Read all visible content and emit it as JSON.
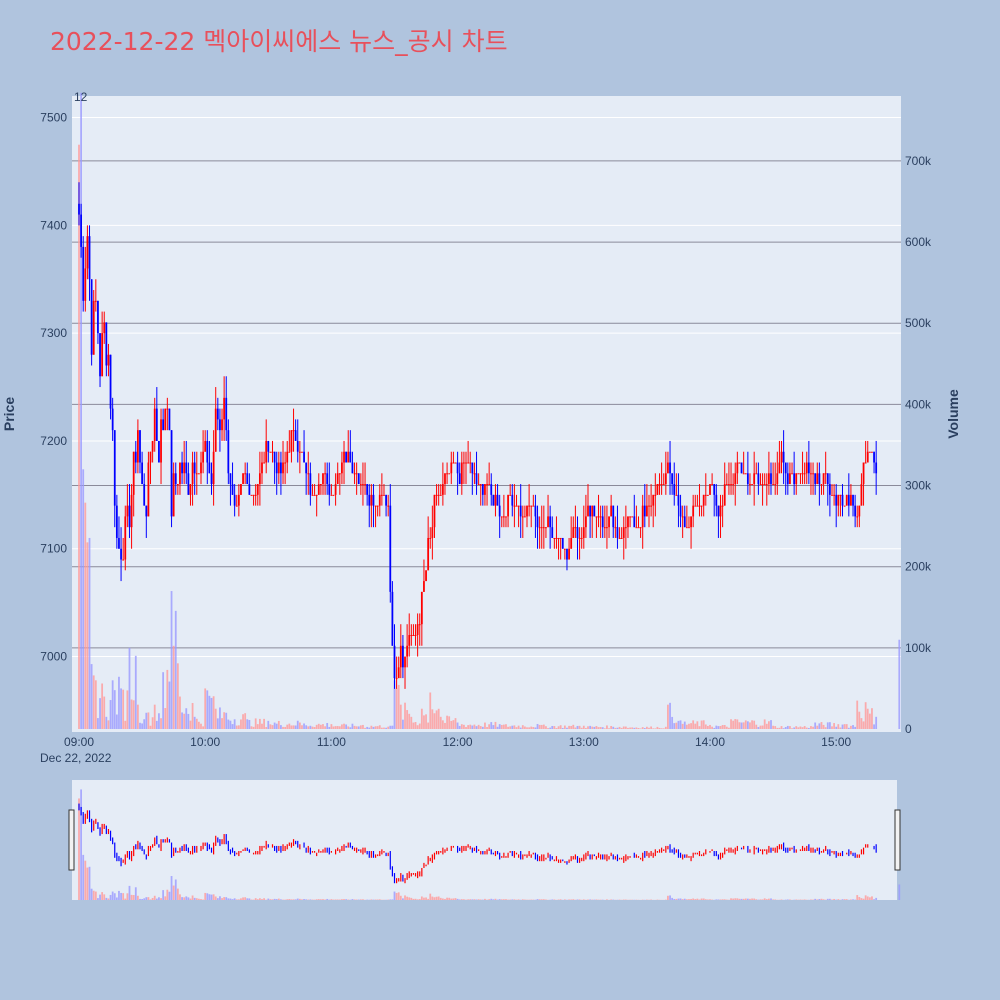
{
  "title": "2022-12-22 멕아이씨에스 뉴스_공시 차트",
  "colors": {
    "background": "#b0c4de",
    "plot_bg": "#e5ecf6",
    "title": "#e8505b",
    "up": "#ff0000",
    "down": "#0000ff",
    "up_volume": "#ff9a9a",
    "down_volume": "#9a9aff",
    "text": "#2a3f5f"
  },
  "chart_data": {
    "type": "candlestick",
    "title": "2022-12-22 멕아이씨에스 뉴스_공시 차트",
    "ylabel": "Price",
    "y2label": "Volume",
    "date_label": "Dec 22, 2022",
    "annotation": "12",
    "price_ylim": [
      6930,
      7520
    ],
    "volume_ylim": [
      0,
      780000
    ],
    "x_range": [
      "09:00",
      "15:30"
    ],
    "price_ticks": [
      7000,
      7100,
      7200,
      7300,
      7400,
      7500
    ],
    "price_tick_labels": [
      "7000",
      "7100",
      "7200",
      "7300",
      "7400",
      "7500"
    ],
    "volume_ticks": [
      0,
      100000,
      200000,
      300000,
      400000,
      500000,
      600000,
      700000
    ],
    "volume_tick_labels": [
      "0",
      "100k",
      "200k",
      "300k",
      "400k",
      "500k",
      "600k",
      "700k"
    ],
    "time_ticks": [
      "09:00",
      "10:00",
      "11:00",
      "12:00",
      "13:00",
      "14:00",
      "15:00"
    ],
    "price_path": [
      [
        "09:00",
        7410
      ],
      [
        "09:02",
        7350
      ],
      [
        "09:04",
        7390
      ],
      [
        "09:06",
        7300
      ],
      [
        "09:08",
        7330
      ],
      [
        "09:10",
        7270
      ],
      [
        "09:12",
        7300
      ],
      [
        "09:14",
        7280
      ],
      [
        "09:16",
        7200
      ],
      [
        "09:18",
        7110
      ],
      [
        "09:20",
        7100
      ],
      [
        "09:22",
        7110
      ],
      [
        "09:24",
        7140
      ],
      [
        "09:26",
        7170
      ],
      [
        "09:28",
        7210
      ],
      [
        "09:30",
        7150
      ],
      [
        "09:32",
        7140
      ],
      [
        "09:34",
        7190
      ],
      [
        "09:36",
        7230
      ],
      [
        "09:38",
        7190
      ],
      [
        "09:40",
        7220
      ],
      [
        "09:42",
        7250
      ],
      [
        "09:44",
        7140
      ],
      [
        "09:46",
        7160
      ],
      [
        "09:48",
        7180
      ],
      [
        "09:50",
        7170
      ],
      [
        "09:52",
        7160
      ],
      [
        "09:55",
        7190
      ],
      [
        "09:58",
        7170
      ],
      [
        "10:00",
        7190
      ],
      [
        "10:03",
        7160
      ],
      [
        "10:05",
        7230
      ],
      [
        "10:07",
        7210
      ],
      [
        "10:09",
        7240
      ],
      [
        "10:11",
        7170
      ],
      [
        "10:13",
        7150
      ],
      [
        "10:15",
        7130
      ],
      [
        "10:18",
        7170
      ],
      [
        "10:21",
        7160
      ],
      [
        "10:24",
        7150
      ],
      [
        "10:27",
        7180
      ],
      [
        "10:30",
        7200
      ],
      [
        "10:33",
        7180
      ],
      [
        "10:36",
        7170
      ],
      [
        "10:39",
        7190
      ],
      [
        "10:42",
        7210
      ],
      [
        "10:45",
        7190
      ],
      [
        "10:48",
        7170
      ],
      [
        "10:51",
        7150
      ],
      [
        "10:55",
        7170
      ],
      [
        "11:00",
        7150
      ],
      [
        "11:03",
        7170
      ],
      [
        "11:06",
        7190
      ],
      [
        "11:09",
        7180
      ],
      [
        "11:12",
        7170
      ],
      [
        "11:15",
        7160
      ],
      [
        "11:18",
        7150
      ],
      [
        "11:21",
        7140
      ],
      [
        "11:24",
        7150
      ],
      [
        "11:27",
        7140
      ],
      [
        "11:29",
        7000
      ],
      [
        "11:31",
        6990
      ],
      [
        "11:33",
        7010
      ],
      [
        "11:35",
        7000
      ],
      [
        "11:37",
        7020
      ],
      [
        "11:39",
        7010
      ],
      [
        "11:41",
        7030
      ],
      [
        "11:43",
        7050
      ],
      [
        "11:45",
        7080
      ],
      [
        "11:47",
        7110
      ],
      [
        "11:49",
        7140
      ],
      [
        "11:51",
        7150
      ],
      [
        "11:53",
        7160
      ],
      [
        "11:55",
        7170
      ],
      [
        "11:58",
        7180
      ],
      [
        "12:01",
        7170
      ],
      [
        "12:04",
        7180
      ],
      [
        "12:07",
        7170
      ],
      [
        "12:10",
        7160
      ],
      [
        "12:13",
        7160
      ],
      [
        "12:16",
        7150
      ],
      [
        "12:19",
        7140
      ],
      [
        "12:22",
        7130
      ],
      [
        "12:25",
        7150
      ],
      [
        "12:28",
        7140
      ],
      [
        "12:31",
        7130
      ],
      [
        "12:34",
        7140
      ],
      [
        "12:37",
        7130
      ],
      [
        "12:40",
        7120
      ],
      [
        "12:43",
        7130
      ],
      [
        "12:46",
        7110
      ],
      [
        "12:49",
        7120
      ],
      [
        "12:52",
        7090
      ],
      [
        "12:55",
        7120
      ],
      [
        "12:58",
        7110
      ],
      [
        "13:01",
        7130
      ],
      [
        "13:04",
        7140
      ],
      [
        "13:07",
        7130
      ],
      [
        "13:10",
        7120
      ],
      [
        "13:13",
        7130
      ],
      [
        "13:16",
        7110
      ],
      [
        "13:19",
        7120
      ],
      [
        "13:22",
        7130
      ],
      [
        "13:25",
        7120
      ],
      [
        "13:28",
        7130
      ],
      [
        "13:31",
        7140
      ],
      [
        "13:34",
        7150
      ],
      [
        "13:37",
        7160
      ],
      [
        "13:40",
        7180
      ],
      [
        "13:43",
        7150
      ],
      [
        "13:46",
        7130
      ],
      [
        "13:49",
        7120
      ],
      [
        "13:52",
        7140
      ],
      [
        "13:55",
        7130
      ],
      [
        "13:58",
        7150
      ],
      [
        "14:01",
        7160
      ],
      [
        "14:04",
        7140
      ],
      [
        "14:07",
        7150
      ],
      [
        "14:10",
        7160
      ],
      [
        "14:13",
        7180
      ],
      [
        "14:16",
        7170
      ],
      [
        "14:19",
        7160
      ],
      [
        "14:22",
        7170
      ],
      [
        "14:25",
        7160
      ],
      [
        "14:28",
        7170
      ],
      [
        "14:31",
        7160
      ],
      [
        "14:34",
        7180
      ],
      [
        "14:37",
        7170
      ],
      [
        "14:40",
        7160
      ],
      [
        "14:43",
        7170
      ],
      [
        "14:46",
        7180
      ],
      [
        "14:49",
        7170
      ],
      [
        "14:52",
        7160
      ],
      [
        "14:55",
        7170
      ],
      [
        "14:58",
        7150
      ],
      [
        "15:01",
        7150
      ],
      [
        "15:04",
        7140
      ],
      [
        "15:07",
        7150
      ],
      [
        "15:10",
        7130
      ],
      [
        "15:13",
        7180
      ],
      [
        "15:16",
        7190
      ],
      [
        "15:19",
        7170
      ]
    ],
    "volume_profile": [
      [
        "09:00",
        720000
      ],
      [
        "09:02",
        320000
      ],
      [
        "09:04",
        230000
      ],
      [
        "09:06",
        80000
      ],
      [
        "09:08",
        60000
      ],
      [
        "09:12",
        40000
      ],
      [
        "09:16",
        60000
      ],
      [
        "09:20",
        50000
      ],
      [
        "09:24",
        100000
      ],
      [
        "09:28",
        30000
      ],
      [
        "09:32",
        20000
      ],
      [
        "09:36",
        30000
      ],
      [
        "09:40",
        70000
      ],
      [
        "09:44",
        170000
      ],
      [
        "09:48",
        40000
      ],
      [
        "09:55",
        15000
      ],
      [
        "10:00",
        50000
      ],
      [
        "10:05",
        25000
      ],
      [
        "10:10",
        20000
      ],
      [
        "10:20",
        12000
      ],
      [
        "10:30",
        10000
      ],
      [
        "10:45",
        8000
      ],
      [
        "11:00",
        6000
      ],
      [
        "11:15",
        5000
      ],
      [
        "11:28",
        4000
      ],
      [
        "11:30",
        60000
      ],
      [
        "11:33",
        30000
      ],
      [
        "11:38",
        15000
      ],
      [
        "11:43",
        25000
      ],
      [
        "11:47",
        45000
      ],
      [
        "11:52",
        15000
      ],
      [
        "12:00",
        8000
      ],
      [
        "12:20",
        6000
      ],
      [
        "12:40",
        5000
      ],
      [
        "13:00",
        4000
      ],
      [
        "13:20",
        3000
      ],
      [
        "13:40",
        30000
      ],
      [
        "13:45",
        10000
      ],
      [
        "14:00",
        5000
      ],
      [
        "14:10",
        12000
      ],
      [
        "14:30",
        4000
      ],
      [
        "14:50",
        8000
      ],
      [
        "15:05",
        6000
      ],
      [
        "15:10",
        35000
      ],
      [
        "15:15",
        25000
      ],
      [
        "15:19",
        15000
      ],
      [
        "15:30",
        110000
      ]
    ]
  }
}
